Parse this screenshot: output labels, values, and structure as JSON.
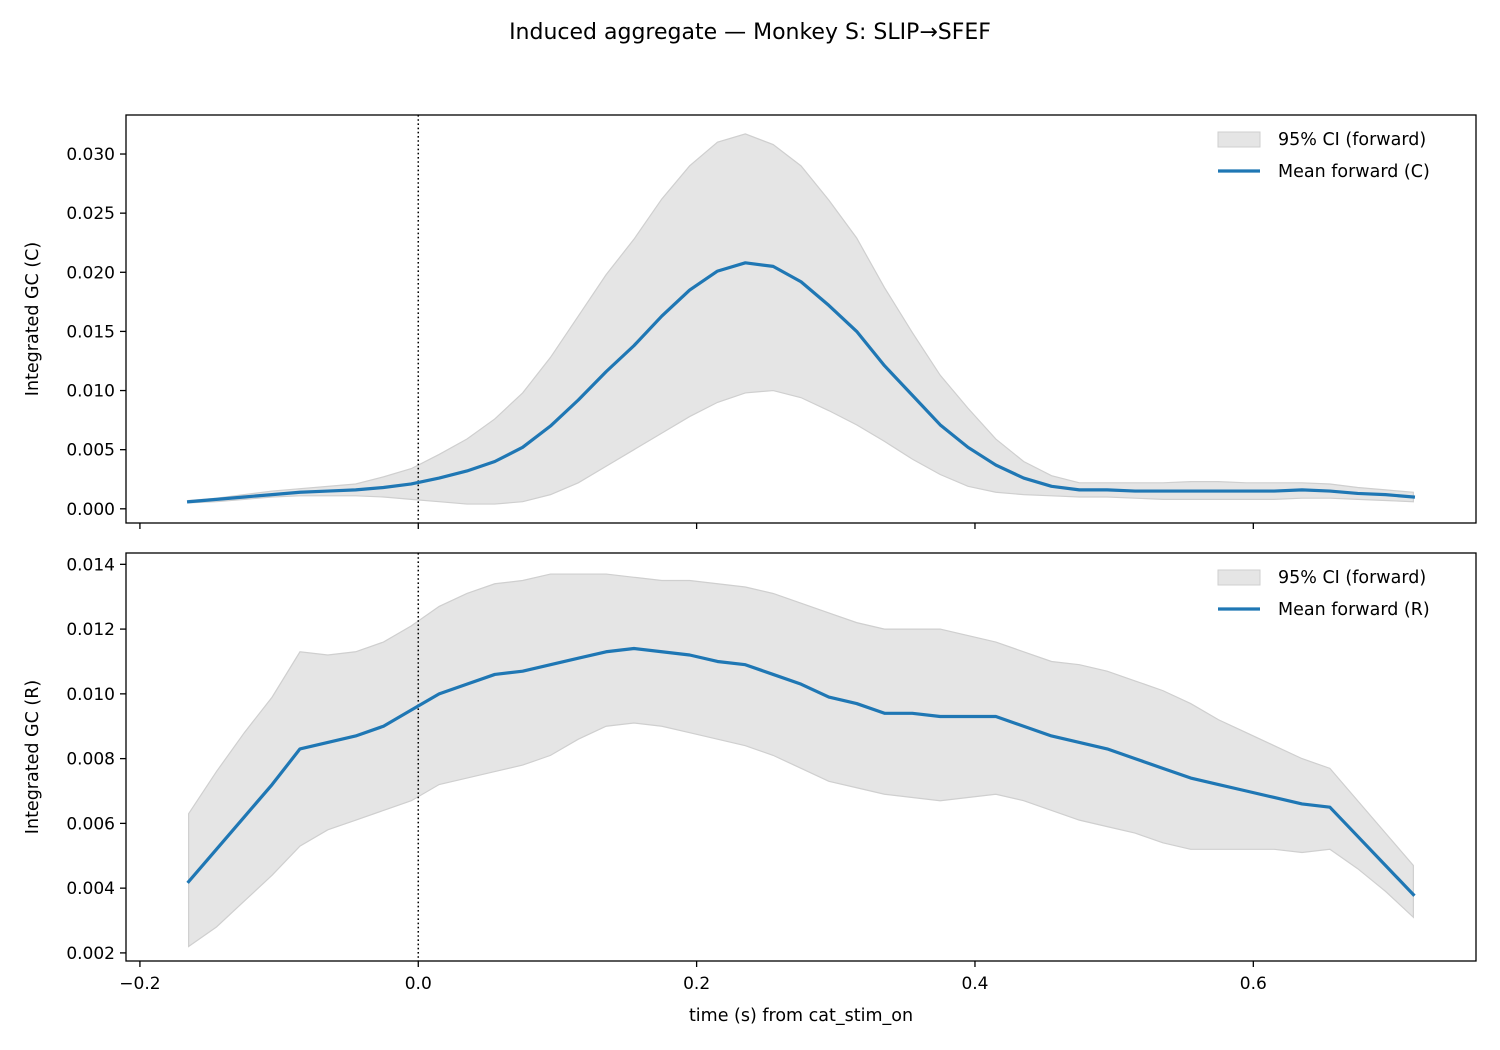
{
  "figure": {
    "title": "Induced aggregate — Monkey S: SLIP→SFEF",
    "xlabel": "time (s) from cat_stim_on"
  },
  "colors": {
    "mean_line": "#1f77b4",
    "ci_fill": "#e5e5e5",
    "ci_edge": "#cfcfcf",
    "zero_line": "#000000"
  },
  "chart_data": [
    {
      "type": "line",
      "ylabel": "Integrated GC (C)",
      "xlim": [
        -0.21,
        0.76
      ],
      "ylim": [
        -0.0012,
        0.0333
      ],
      "x_ticks": [
        -0.2,
        0.0,
        0.2,
        0.4,
        0.6
      ],
      "x_tick_labels_shown": false,
      "y_ticks": [
        0.0,
        0.005,
        0.01,
        0.015,
        0.02,
        0.025,
        0.03
      ],
      "y_tick_labels": [
        "0.000",
        "0.005",
        "0.010",
        "0.015",
        "0.020",
        "0.025",
        "0.030"
      ],
      "vline_x": 0.0,
      "legend": {
        "position": "top-right",
        "entries": [
          "95% CI (forward)",
          "Mean forward (C)"
        ]
      },
      "x": [
        -0.165,
        -0.145,
        -0.125,
        -0.105,
        -0.085,
        -0.065,
        -0.045,
        -0.025,
        -0.005,
        0.015,
        0.035,
        0.055,
        0.075,
        0.095,
        0.115,
        0.135,
        0.155,
        0.175,
        0.195,
        0.215,
        0.235,
        0.255,
        0.275,
        0.295,
        0.315,
        0.335,
        0.355,
        0.375,
        0.395,
        0.415,
        0.435,
        0.455,
        0.475,
        0.495,
        0.515,
        0.535,
        0.555,
        0.575,
        0.595,
        0.615,
        0.635,
        0.655,
        0.675,
        0.695,
        0.715
      ],
      "series": [
        {
          "name": "Mean forward (C)",
          "values": [
            0.0006,
            0.0008,
            0.001,
            0.0012,
            0.0014,
            0.0015,
            0.0016,
            0.0018,
            0.0021,
            0.0026,
            0.0032,
            0.004,
            0.0052,
            0.007,
            0.0092,
            0.0116,
            0.0138,
            0.0163,
            0.0185,
            0.0201,
            0.0208,
            0.0205,
            0.0192,
            0.0172,
            0.015,
            0.0121,
            0.0096,
            0.0071,
            0.0052,
            0.0037,
            0.0026,
            0.0019,
            0.0016,
            0.0016,
            0.0015,
            0.0015,
            0.0015,
            0.0015,
            0.0015,
            0.0015,
            0.0016,
            0.0015,
            0.0013,
            0.0012,
            0.001
          ]
        },
        {
          "name": "95% CI (forward)",
          "lower": [
            0.0005,
            0.0006,
            0.0008,
            0.001,
            0.0011,
            0.0011,
            0.0011,
            0.001,
            0.0008,
            0.0006,
            0.0004,
            0.0004,
            0.0006,
            0.0012,
            0.0022,
            0.0036,
            0.005,
            0.0064,
            0.0078,
            0.009,
            0.0098,
            0.01,
            0.0094,
            0.0083,
            0.0071,
            0.0057,
            0.0042,
            0.0029,
            0.0019,
            0.0014,
            0.0012,
            0.0011,
            0.001,
            0.001,
            0.0009,
            0.0008,
            0.0008,
            0.0008,
            0.0008,
            0.0008,
            0.0009,
            0.0009,
            0.0008,
            0.0007,
            0.0006
          ],
          "upper": [
            0.0007,
            0.0009,
            0.0012,
            0.0015,
            0.0017,
            0.0019,
            0.0021,
            0.0027,
            0.0034,
            0.0046,
            0.0059,
            0.0076,
            0.0098,
            0.0128,
            0.0163,
            0.0198,
            0.0228,
            0.0262,
            0.029,
            0.031,
            0.0317,
            0.0308,
            0.029,
            0.0261,
            0.0229,
            0.0187,
            0.0149,
            0.0113,
            0.0085,
            0.0059,
            0.004,
            0.0028,
            0.0022,
            0.0022,
            0.0022,
            0.0022,
            0.0023,
            0.0023,
            0.0022,
            0.0022,
            0.0022,
            0.0021,
            0.0018,
            0.0016,
            0.0014
          ]
        }
      ]
    },
    {
      "type": "line",
      "ylabel": "Integrated GC (R)",
      "xlim": [
        -0.21,
        0.76
      ],
      "ylim": [
        0.00175,
        0.01435
      ],
      "x_ticks": [
        -0.2,
        0.0,
        0.2,
        0.4,
        0.6
      ],
      "x_tick_labels": [
        "−0.2",
        "0.0",
        "0.2",
        "0.4",
        "0.6"
      ],
      "y_ticks": [
        0.002,
        0.004,
        0.006,
        0.008,
        0.01,
        0.012,
        0.014
      ],
      "y_tick_labels": [
        "0.002",
        "0.004",
        "0.006",
        "0.008",
        "0.010",
        "0.012",
        "0.014"
      ],
      "vline_x": 0.0,
      "legend": {
        "position": "top-right",
        "entries": [
          "95% CI (forward)",
          "Mean forward (R)"
        ]
      },
      "x": [
        -0.165,
        -0.145,
        -0.125,
        -0.105,
        -0.085,
        -0.065,
        -0.045,
        -0.025,
        -0.005,
        0.015,
        0.035,
        0.055,
        0.075,
        0.095,
        0.115,
        0.135,
        0.155,
        0.175,
        0.195,
        0.215,
        0.235,
        0.255,
        0.275,
        0.295,
        0.315,
        0.335,
        0.355,
        0.375,
        0.395,
        0.415,
        0.435,
        0.455,
        0.475,
        0.495,
        0.515,
        0.535,
        0.555,
        0.575,
        0.595,
        0.615,
        0.635,
        0.655,
        0.675,
        0.695,
        0.715
      ],
      "series": [
        {
          "name": "Mean forward (R)",
          "values": [
            0.0042,
            0.0052,
            0.0062,
            0.0072,
            0.0083,
            0.0085,
            0.0087,
            0.009,
            0.0095,
            0.01,
            0.0103,
            0.0106,
            0.0107,
            0.0109,
            0.0111,
            0.0113,
            0.0114,
            0.0113,
            0.0112,
            0.011,
            0.0109,
            0.0106,
            0.0103,
            0.0099,
            0.0097,
            0.0094,
            0.0094,
            0.0093,
            0.0093,
            0.0093,
            0.009,
            0.0087,
            0.0085,
            0.0083,
            0.008,
            0.0077,
            0.0074,
            0.0072,
            0.007,
            0.0068,
            0.0066,
            0.0065,
            0.0056,
            0.0047,
            0.0038
          ]
        },
        {
          "name": "95% CI (forward)",
          "lower": [
            0.0022,
            0.0028,
            0.0036,
            0.0044,
            0.0053,
            0.0058,
            0.0061,
            0.0064,
            0.0067,
            0.0072,
            0.0074,
            0.0076,
            0.0078,
            0.0081,
            0.0086,
            0.009,
            0.0091,
            0.009,
            0.0088,
            0.0086,
            0.0084,
            0.0081,
            0.0077,
            0.0073,
            0.0071,
            0.0069,
            0.0068,
            0.0067,
            0.0068,
            0.0069,
            0.0067,
            0.0064,
            0.0061,
            0.0059,
            0.0057,
            0.0054,
            0.0052,
            0.0052,
            0.0052,
            0.0052,
            0.0051,
            0.0052,
            0.0046,
            0.0039,
            0.0031
          ],
          "upper": [
            0.0063,
            0.0076,
            0.0088,
            0.0099,
            0.0113,
            0.0112,
            0.0113,
            0.0116,
            0.0121,
            0.0127,
            0.0131,
            0.0134,
            0.0135,
            0.0137,
            0.0137,
            0.0137,
            0.0136,
            0.0135,
            0.0135,
            0.0134,
            0.0133,
            0.0131,
            0.0128,
            0.0125,
            0.0122,
            0.012,
            0.012,
            0.012,
            0.0118,
            0.0116,
            0.0113,
            0.011,
            0.0109,
            0.0107,
            0.0104,
            0.0101,
            0.0097,
            0.0092,
            0.0088,
            0.0084,
            0.008,
            0.0077,
            0.0067,
            0.0057,
            0.0047
          ]
        }
      ]
    }
  ]
}
